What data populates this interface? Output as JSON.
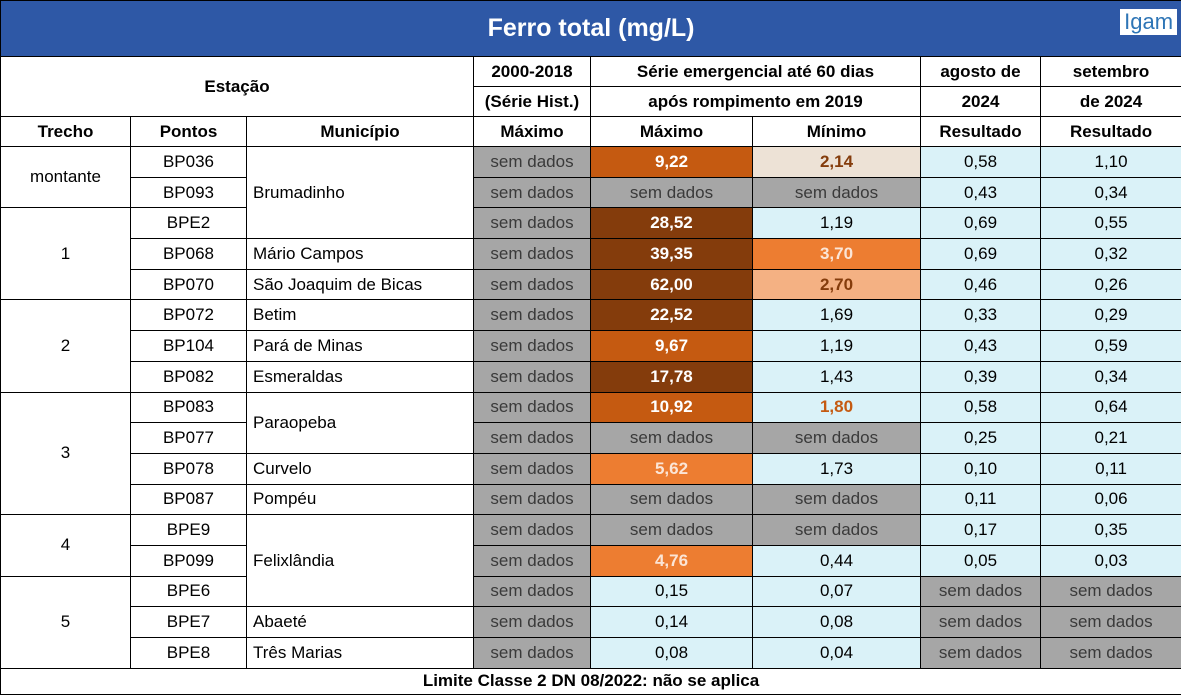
{
  "title": "Ferro total (mg/L)",
  "logo": "Igam",
  "header": {
    "estacao": "Estação",
    "hist": [
      "2000-2018",
      "(Série Hist.)"
    ],
    "emerg": [
      "Série emergencial até 60 dias",
      "após rompimento em 2019"
    ],
    "ago": [
      "agosto de",
      "2024"
    ],
    "set": [
      "setembro",
      "de 2024"
    ],
    "sub": [
      "Trecho",
      "Pontos",
      "Município",
      "Máximo",
      "Máximo",
      "Mínimo",
      "Resultado",
      "Resultado"
    ]
  },
  "colors": {
    "empty": "#a6a6a6",
    "default": "#daf2f8"
  },
  "trechos": [
    {
      "label": "montante",
      "span": 2
    },
    {
      "label": "1",
      "span": 3
    },
    {
      "label": "2",
      "span": 3
    },
    {
      "label": "3",
      "span": 4
    },
    {
      "label": "4",
      "span": 2
    },
    {
      "label": "5",
      "span": 3
    }
  ],
  "municipios": [
    {
      "name": "Brumadinho",
      "span": 3
    },
    {
      "name": "Mário Campos",
      "span": 1
    },
    {
      "name": "São Joaquim de Bicas",
      "span": 1
    },
    {
      "name": "Betim",
      "span": 1
    },
    {
      "name": "Pará de Minas",
      "span": 1
    },
    {
      "name": "Esmeraldas",
      "span": 1
    },
    {
      "name": "Paraopeba",
      "span": 2
    },
    {
      "name": "Curvelo",
      "span": 1
    },
    {
      "name": "Pompéu",
      "span": 1
    },
    {
      "name": "Felixlândia",
      "span": 3
    },
    {
      "name": "Abaeté",
      "span": 1
    },
    {
      "name": "Três Marias",
      "span": 1
    }
  ],
  "rows": [
    {
      "ponto": "BP036",
      "hist": "sem dados",
      "max": "9,22",
      "min": "2,14",
      "ago": "0,58",
      "set": "1,10",
      "max_bg": "#c55a11",
      "max_fg": "#ffffff",
      "min_bg": "#ede2d6",
      "min_fg": "#843c0c"
    },
    {
      "ponto": "BP093",
      "hist": "sem dados",
      "max": "sem dados",
      "min": "sem dados",
      "ago": "0,43",
      "set": "0,34"
    },
    {
      "ponto": "BPE2",
      "hist": "sem dados",
      "max": "28,52",
      "min": "1,19",
      "ago": "0,69",
      "set": "0,55",
      "max_bg": "#843c0c",
      "max_fg": "#ffffff"
    },
    {
      "ponto": "BP068",
      "hist": "sem dados",
      "max": "39,35",
      "min": "3,70",
      "ago": "0,69",
      "set": "0,32",
      "max_bg": "#843c0c",
      "max_fg": "#ffffff",
      "min_bg": "#ed7d31",
      "min_fg": "#fbe5d6"
    },
    {
      "ponto": "BP070",
      "hist": "sem dados",
      "max": "62,00",
      "min": "2,70",
      "ago": "0,46",
      "set": "0,26",
      "max_bg": "#843c0c",
      "max_fg": "#ffffff",
      "min_bg": "#f4b183",
      "min_fg": "#843c0c"
    },
    {
      "ponto": "BP072",
      "hist": "sem dados",
      "max": "22,52",
      "min": "1,69",
      "ago": "0,33",
      "set": "0,29",
      "max_bg": "#843c0c",
      "max_fg": "#ffffff"
    },
    {
      "ponto": "BP104",
      "hist": "sem dados",
      "max": "9,67",
      "min": "1,19",
      "ago": "0,43",
      "set": "0,59",
      "max_bg": "#c55a11",
      "max_fg": "#ffffff"
    },
    {
      "ponto": "BP082",
      "hist": "sem dados",
      "max": "17,78",
      "min": "1,43",
      "ago": "0,39",
      "set": "0,34",
      "max_bg": "#843c0c",
      "max_fg": "#ffffff"
    },
    {
      "ponto": "BP083",
      "hist": "sem dados",
      "max": "10,92",
      "min": "1,80",
      "ago": "0,58",
      "set": "0,64",
      "max_bg": "#c55a11",
      "max_fg": "#ffffff",
      "min_bg": "#daf2f8",
      "min_fg": "#c55a11"
    },
    {
      "ponto": "BP077",
      "hist": "sem dados",
      "max": "sem dados",
      "min": "sem dados",
      "ago": "0,25",
      "set": "0,21"
    },
    {
      "ponto": "BP078",
      "hist": "sem dados",
      "max": "5,62",
      "min": "1,73",
      "ago": "0,10",
      "set": "0,11",
      "max_bg": "#ed7d31",
      "max_fg": "#fbe5d6"
    },
    {
      "ponto": "BP087",
      "hist": "sem dados",
      "max": "sem dados",
      "min": "sem dados",
      "ago": "0,11",
      "set": "0,06"
    },
    {
      "ponto": "BPE9",
      "hist": "sem dados",
      "max": "sem dados",
      "min": "sem dados",
      "ago": "0,17",
      "set": "0,35"
    },
    {
      "ponto": "BP099",
      "hist": "sem dados",
      "max": "4,76",
      "min": "0,44",
      "ago": "0,05",
      "set": "0,03",
      "max_bg": "#ed7d31",
      "max_fg": "#fbe5d6"
    },
    {
      "ponto": "BPE6",
      "hist": "sem dados",
      "max": "0,15",
      "min": "0,07",
      "ago": "sem dados",
      "set": "sem dados"
    },
    {
      "ponto": "BPE7",
      "hist": "sem dados",
      "max": "0,14",
      "min": "0,08",
      "ago": "sem dados",
      "set": "sem dados"
    },
    {
      "ponto": "BPE8",
      "hist": "sem dados",
      "max": "0,08",
      "min": "0,04",
      "ago": "sem dados",
      "set": "sem dados"
    }
  ],
  "footer": "Limite Classe 2 DN 08/2022: não se aplica"
}
